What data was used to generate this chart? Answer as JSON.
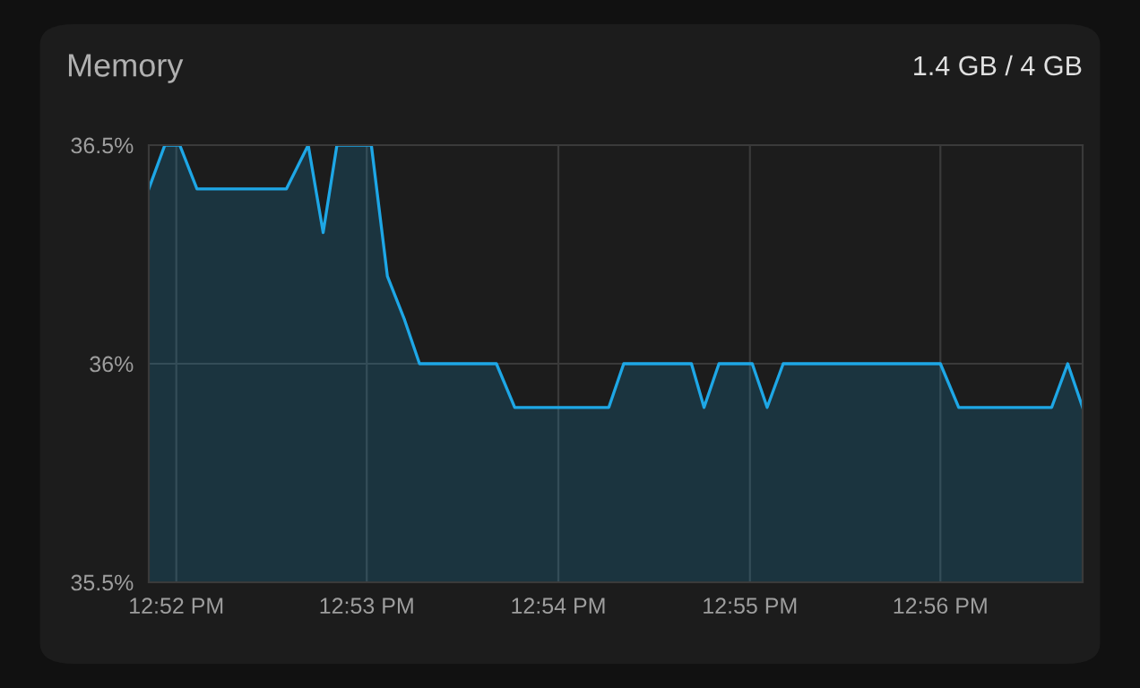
{
  "chart_data": {
    "type": "area",
    "title": "Memory",
    "subtitle": "1.4 GB / 4 GB",
    "x": [
      12.8643,
      12.8657,
      12.867,
      12.8685,
      12.8763,
      12.8782,
      12.8795,
      12.8807,
      12.8837,
      12.8851,
      12.8866,
      12.8879,
      12.8946,
      12.8962,
      12.9044,
      12.9057,
      12.9116,
      12.9127,
      12.914,
      12.9169,
      12.9182,
      12.9196,
      12.9333,
      12.9349,
      12.943,
      12.9444,
      12.9457
    ],
    "series": [
      {
        "color": "#1ea7e6",
        "values": [
          36.4,
          36.5,
          36.5,
          36.4,
          36.4,
          36.5,
          36.3,
          36.5,
          36.5,
          36.2,
          36.1,
          36.0,
          36.0,
          35.9,
          35.9,
          36.0,
          36.0,
          35.9,
          36.0,
          36.0,
          35.9,
          36.0,
          36.0,
          35.9,
          35.9,
          36.0,
          35.9
        ]
      }
    ],
    "xlim": [
      12.8643,
      12.9457
    ],
    "xticks": [
      {
        "value": 12.8667,
        "label": "12:52 PM"
      },
      {
        "value": 12.8833,
        "label": "12:53 PM"
      },
      {
        "value": 12.9,
        "label": "12:54 PM"
      },
      {
        "value": 12.9167,
        "label": "12:55 PM"
      },
      {
        "value": 12.9333,
        "label": "12:56 PM"
      }
    ],
    "ylim": [
      35.5,
      36.5
    ],
    "yticks": [
      {
        "value": 35.5,
        "label": "35.5%"
      },
      {
        "value": 36,
        "label": "36%"
      },
      {
        "value": 36.5,
        "label": "36.5%"
      }
    ],
    "grid": true,
    "legend": false
  }
}
